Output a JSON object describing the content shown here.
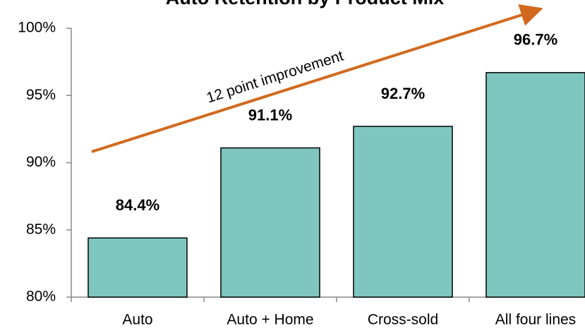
{
  "chart_data": {
    "type": "bar",
    "title": "Auto Retention by Product Mix",
    "categories": [
      "Auto",
      "Auto + Home",
      "Cross-sold",
      "All four lines"
    ],
    "values": [
      84.4,
      91.1,
      92.7,
      96.7
    ],
    "value_labels": [
      "84.4%",
      "91.1%",
      "92.7%",
      "96.7%"
    ],
    "color": "#7fc6c0",
    "ylim": [
      80,
      100
    ],
    "yticks": [
      {
        "value": 80,
        "label": "80%"
      },
      {
        "value": 85,
        "label": "85%"
      },
      {
        "value": 90,
        "label": "90%"
      },
      {
        "value": 95,
        "label": "95%"
      },
      {
        "value": 100,
        "label": "100%"
      }
    ],
    "annotation": "12 point improvement",
    "grid": false
  }
}
